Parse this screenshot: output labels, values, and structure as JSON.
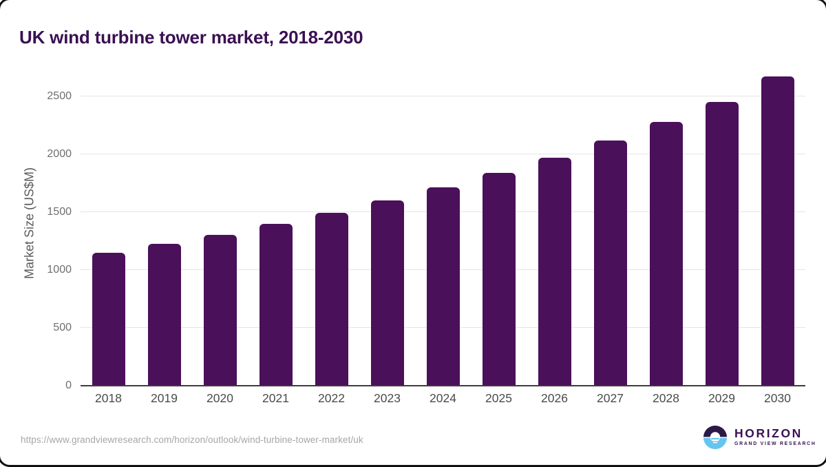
{
  "title": "UK wind turbine tower market, 2018-2030",
  "chart_data": {
    "type": "bar",
    "title": "UK wind turbine tower market, 2018-2030",
    "categories": [
      "2018",
      "2019",
      "2020",
      "2021",
      "2022",
      "2023",
      "2024",
      "2025",
      "2026",
      "2027",
      "2028",
      "2029",
      "2030"
    ],
    "values": [
      1150,
      1225,
      1305,
      1400,
      1495,
      1600,
      1715,
      1840,
      1975,
      2120,
      2280,
      2455,
      2675
    ],
    "xlabel": "",
    "ylabel": "Market Size (US$M)",
    "ylim": [
      0,
      2723
    ],
    "yticks": [
      0,
      500,
      1000,
      1500,
      2000,
      2500
    ],
    "grid": true,
    "legend": false,
    "bar_color": "#4a1059"
  },
  "footer": {
    "source_url": "https://www.grandviewresearch.com/horizon/outlook/wind-turbine-tower-market/uk"
  },
  "logo": {
    "name": "HORIZON",
    "subtitle": "GRAND VIEW RESEARCH",
    "dark_color": "#2b1a47",
    "blue_color": "#66c5ef"
  },
  "colors": {
    "title_text": "#3a1053",
    "bar": "#4a1059",
    "gridline": "#e5e5e7",
    "axis_line": "#3c3c3c",
    "tick_text": "#6e6e6e",
    "x_tick_text": "#4a4a4a",
    "url_text": "#a6a6a6"
  }
}
